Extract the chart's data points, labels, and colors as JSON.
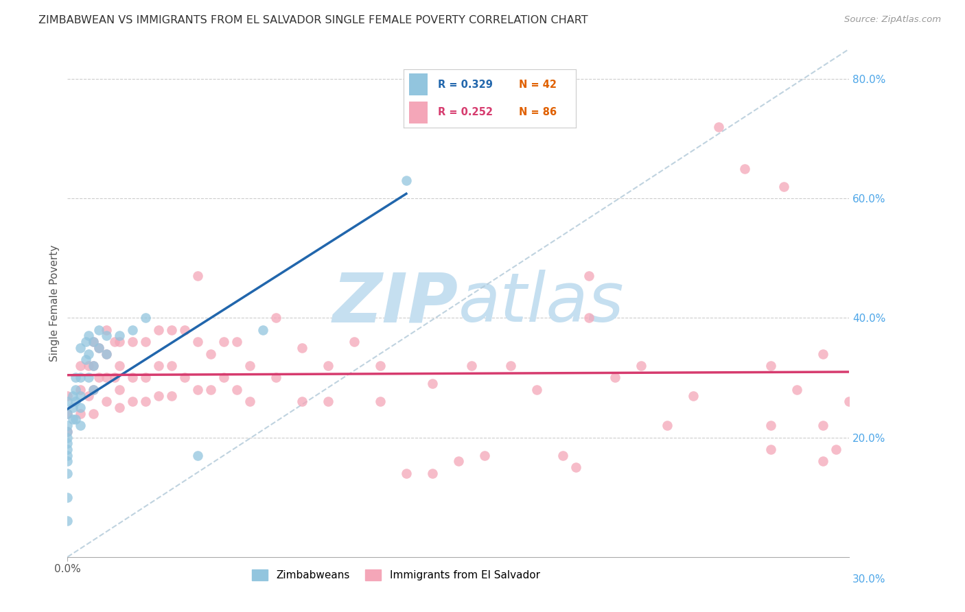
{
  "title": "ZIMBABWEAN VS IMMIGRANTS FROM EL SALVADOR SINGLE FEMALE POVERTY CORRELATION CHART",
  "source": "Source: ZipAtlas.com",
  "ylabel": "Single Female Poverty",
  "xlim": [
    0.0,
    0.3
  ],
  "ylim": [
    0.0,
    0.85
  ],
  "right_ytick_values": [
    0.2,
    0.4,
    0.6,
    0.8
  ],
  "right_ytick_labels": [
    "20.0%",
    "40.0%",
    "60.0%",
    "80.0%"
  ],
  "legend_r1": "0.329",
  "legend_n1": "42",
  "legend_r2": "0.252",
  "legend_n2": "86",
  "color_blue": "#92c5de",
  "color_pink": "#f4a6b8",
  "color_blue_line": "#2166ac",
  "color_pink_line": "#d63b6e",
  "color_right_axis": "#4da6e8",
  "color_diag": "#b0c8d8",
  "watermark_zip": "ZIP",
  "watermark_atlas": "atlas",
  "watermark_color_zip": "#c5dff0",
  "watermark_color_atlas": "#c5dff0",
  "background_color": "#ffffff",
  "zimbabwean_x": [
    0.0,
    0.0,
    0.0,
    0.0,
    0.0,
    0.0,
    0.0,
    0.0,
    0.0,
    0.0,
    0.0,
    0.0,
    0.002,
    0.002,
    0.002,
    0.003,
    0.003,
    0.003,
    0.003,
    0.005,
    0.005,
    0.005,
    0.005,
    0.005,
    0.007,
    0.007,
    0.008,
    0.008,
    0.008,
    0.01,
    0.01,
    0.01,
    0.012,
    0.012,
    0.015,
    0.015,
    0.02,
    0.025,
    0.03,
    0.05,
    0.075,
    0.13
  ],
  "zimbabwean_y": [
    0.26,
    0.24,
    0.22,
    0.21,
    0.2,
    0.19,
    0.18,
    0.17,
    0.16,
    0.14,
    0.1,
    0.06,
    0.27,
    0.25,
    0.23,
    0.3,
    0.28,
    0.26,
    0.23,
    0.35,
    0.3,
    0.27,
    0.25,
    0.22,
    0.36,
    0.33,
    0.37,
    0.34,
    0.3,
    0.36,
    0.32,
    0.28,
    0.38,
    0.35,
    0.37,
    0.34,
    0.37,
    0.38,
    0.4,
    0.17,
    0.38,
    0.63
  ],
  "elsalvador_x": [
    0.0,
    0.0,
    0.0,
    0.005,
    0.005,
    0.005,
    0.008,
    0.008,
    0.01,
    0.01,
    0.01,
    0.01,
    0.012,
    0.012,
    0.015,
    0.015,
    0.015,
    0.015,
    0.018,
    0.018,
    0.02,
    0.02,
    0.02,
    0.02,
    0.025,
    0.025,
    0.025,
    0.03,
    0.03,
    0.03,
    0.035,
    0.035,
    0.035,
    0.04,
    0.04,
    0.04,
    0.045,
    0.045,
    0.05,
    0.05,
    0.05,
    0.055,
    0.055,
    0.06,
    0.06,
    0.065,
    0.065,
    0.07,
    0.07,
    0.08,
    0.08,
    0.09,
    0.09,
    0.1,
    0.1,
    0.11,
    0.12,
    0.12,
    0.13,
    0.14,
    0.14,
    0.15,
    0.155,
    0.16,
    0.17,
    0.18,
    0.19,
    0.195,
    0.2,
    0.2,
    0.21,
    0.22,
    0.23,
    0.24,
    0.25,
    0.26,
    0.27,
    0.27,
    0.27,
    0.275,
    0.28,
    0.29,
    0.29,
    0.29,
    0.295,
    0.3
  ],
  "elsalvador_y": [
    0.27,
    0.24,
    0.21,
    0.32,
    0.28,
    0.24,
    0.32,
    0.27,
    0.36,
    0.32,
    0.28,
    0.24,
    0.35,
    0.3,
    0.38,
    0.34,
    0.3,
    0.26,
    0.36,
    0.3,
    0.36,
    0.32,
    0.28,
    0.25,
    0.36,
    0.3,
    0.26,
    0.36,
    0.3,
    0.26,
    0.38,
    0.32,
    0.27,
    0.38,
    0.32,
    0.27,
    0.38,
    0.3,
    0.47,
    0.36,
    0.28,
    0.34,
    0.28,
    0.36,
    0.3,
    0.36,
    0.28,
    0.32,
    0.26,
    0.4,
    0.3,
    0.35,
    0.26,
    0.32,
    0.26,
    0.36,
    0.32,
    0.26,
    0.14,
    0.29,
    0.14,
    0.16,
    0.32,
    0.17,
    0.32,
    0.28,
    0.17,
    0.15,
    0.47,
    0.4,
    0.3,
    0.32,
    0.22,
    0.27,
    0.72,
    0.65,
    0.32,
    0.22,
    0.18,
    0.62,
    0.28,
    0.34,
    0.22,
    0.16,
    0.18,
    0.26
  ]
}
